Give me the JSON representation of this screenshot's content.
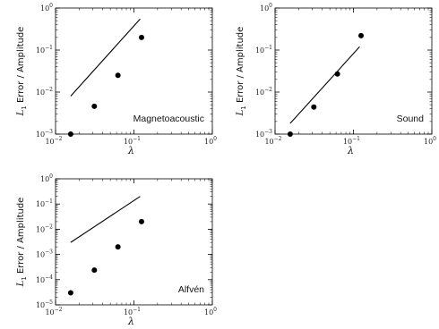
{
  "chart_data": [
    {
      "type": "scatter",
      "annotation": "Magnetoacoustic",
      "xlabel": "λ",
      "ylabel": "L1 Error / Amplitude",
      "xscale": "log",
      "yscale": "log",
      "xlim": [
        0.01,
        1
      ],
      "ylim": [
        0.001,
        1
      ],
      "x_ticks": [
        {
          "base": "10",
          "exp": "−2"
        },
        {
          "base": "10",
          "exp": "−1"
        },
        {
          "base": "10",
          "exp": "0"
        }
      ],
      "y_ticks": [
        {
          "base": "10",
          "exp": "−3"
        },
        {
          "base": "10",
          "exp": "−2"
        },
        {
          "base": "10",
          "exp": "−1"
        },
        {
          "base": "10",
          "exp": "0"
        }
      ],
      "x_tick_values": [
        0.01,
        0.1,
        1
      ],
      "y_tick_values": [
        0.001,
        0.01,
        0.1,
        1
      ],
      "points": {
        "x": [
          0.0156,
          0.03125,
          0.0625,
          0.125
        ],
        "y": [
          0.001,
          0.0046,
          0.025,
          0.2
        ]
      },
      "reference_line": {
        "x": [
          0.0156,
          0.12
        ],
        "y": [
          0.008,
          0.55
        ]
      },
      "annotation_position": "lower-right"
    },
    {
      "type": "scatter",
      "annotation": "Sound",
      "xlabel": "λ",
      "ylabel": "L1 Error / Amplitude",
      "xscale": "log",
      "yscale": "log",
      "xlim": [
        0.01,
        1
      ],
      "ylim": [
        0.001,
        1
      ],
      "x_ticks": [
        {
          "base": "10",
          "exp": "−2"
        },
        {
          "base": "10",
          "exp": "−1"
        },
        {
          "base": "10",
          "exp": "0"
        }
      ],
      "y_ticks": [
        {
          "base": "10",
          "exp": "−3"
        },
        {
          "base": "10",
          "exp": "−2"
        },
        {
          "base": "10",
          "exp": "−1"
        },
        {
          "base": "10",
          "exp": "0"
        }
      ],
      "x_tick_values": [
        0.01,
        0.1,
        1
      ],
      "y_tick_values": [
        0.001,
        0.01,
        0.1,
        1
      ],
      "points": {
        "x": [
          0.0156,
          0.03125,
          0.0625,
          0.125
        ],
        "y": [
          0.001,
          0.0044,
          0.027,
          0.22
        ]
      },
      "reference_line": {
        "x": [
          0.0156,
          0.12
        ],
        "y": [
          0.0018,
          0.12
        ]
      },
      "annotation_position": "lower-right"
    },
    {
      "type": "scatter",
      "annotation": "Alfvén",
      "xlabel": "λ",
      "ylabel": "L1 Error / Amplitude",
      "xscale": "log",
      "yscale": "log",
      "xlim": [
        0.01,
        1
      ],
      "ylim": [
        1e-05,
        1
      ],
      "x_ticks": [
        {
          "base": "10",
          "exp": "−2"
        },
        {
          "base": "10",
          "exp": "−1"
        },
        {
          "base": "10",
          "exp": "0"
        }
      ],
      "y_ticks": [
        {
          "base": "10",
          "exp": "−5"
        },
        {
          "base": "10",
          "exp": "−4"
        },
        {
          "base": "10",
          "exp": "−3"
        },
        {
          "base": "10",
          "exp": "−2"
        },
        {
          "base": "10",
          "exp": "−1"
        },
        {
          "base": "10",
          "exp": "0"
        }
      ],
      "x_tick_values": [
        0.01,
        0.1,
        1
      ],
      "y_tick_values": [
        1e-05,
        0.0001,
        0.001,
        0.01,
        0.1,
        1
      ],
      "points": {
        "x": [
          0.0156,
          0.03125,
          0.0625,
          0.125
        ],
        "y": [
          3e-05,
          0.00024,
          0.002,
          0.02
        ]
      },
      "reference_line": {
        "x": [
          0.0156,
          0.12
        ],
        "y": [
          0.003,
          0.2
        ]
      },
      "annotation_position": "lower-right"
    }
  ]
}
